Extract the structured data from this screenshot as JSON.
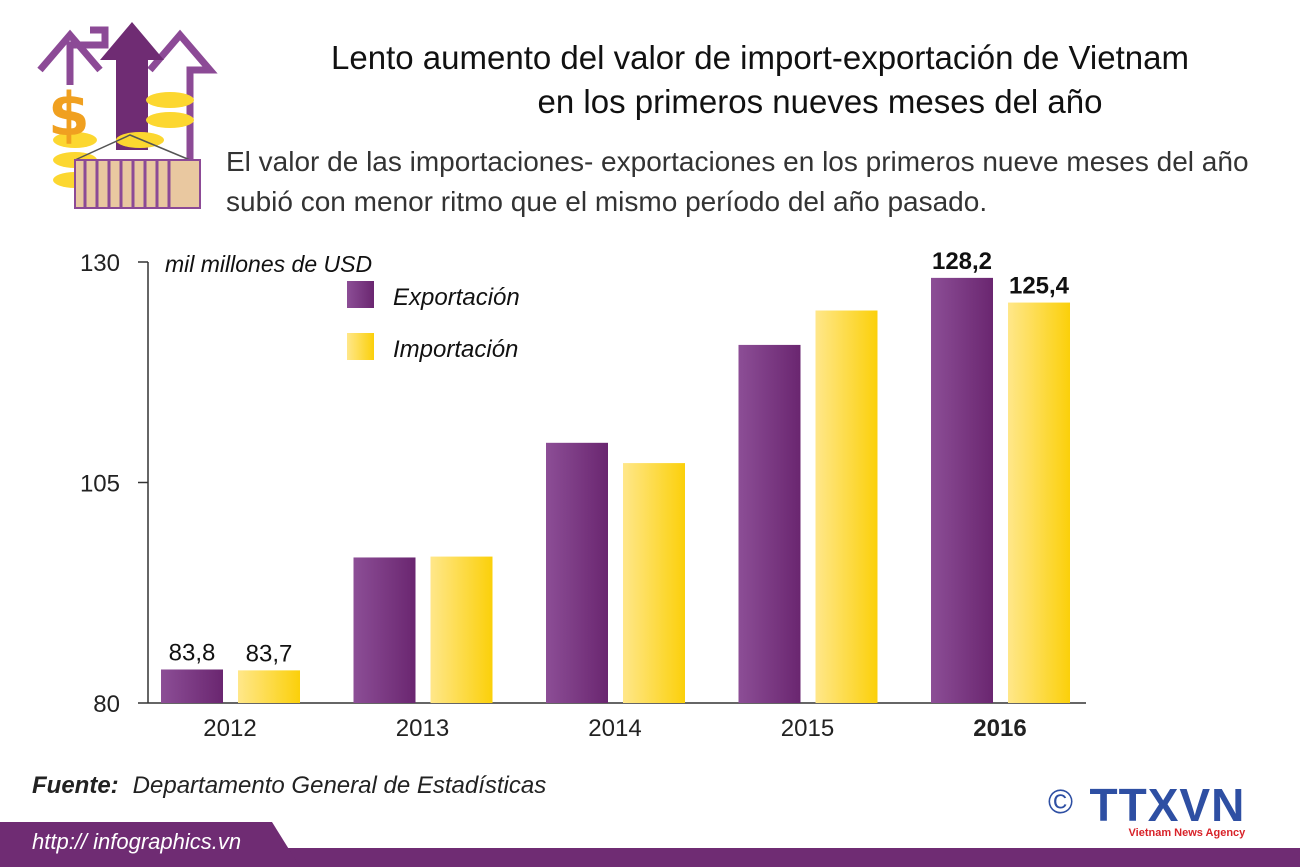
{
  "header": {
    "title_line1": "Lento aumento del valor de import-exportación de Vietnam",
    "title_line2": "en los primeros nueves meses del año",
    "subtitle": "El valor de las importaciones- exportaciones en los primeros nueve meses del año subió con menor ritmo que el mismo período del año pasado."
  },
  "chart_data": {
    "type": "bar",
    "title": "",
    "ylabel": "mil millones de USD",
    "xlabel": "",
    "ylim": [
      80,
      130
    ],
    "yticks": [
      "80",
      "105",
      "130"
    ],
    "categories": [
      "2012",
      "2013",
      "2014",
      "2015",
      "2016"
    ],
    "series": [
      {
        "name": "Exportación",
        "values": [
          83.8,
          96.5,
          109.5,
          120.6,
          128.2
        ],
        "color": "#7b3a83",
        "labels": [
          "83,8",
          "",
          "",
          "",
          "128,2"
        ]
      },
      {
        "name": "Importación",
        "values": [
          83.7,
          96.6,
          107.2,
          124.5,
          125.4
        ],
        "color": "#fcd730",
        "labels": [
          "83,7",
          "",
          "",
          "",
          "125,4"
        ]
      }
    ],
    "grid": false,
    "legend": "top-left"
  },
  "footer": {
    "source_label": "Fuente:",
    "source": "Departamento General de Estadísticas",
    "url": "http:// infographics.vn",
    "logo_text": "TTXVN",
    "logo_sub": "Vietnam News Agency",
    "copyright": "©"
  }
}
